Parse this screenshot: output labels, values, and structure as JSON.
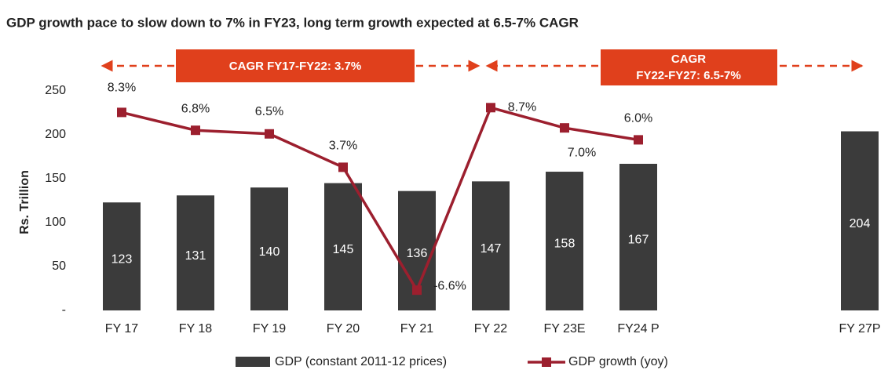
{
  "chart_data": {
    "type": "bar",
    "title": "GDP growth pace to slow down to 7% in FY23, long term growth expected at 6.5-7% CAGR",
    "y_label": "Rs. Trillion",
    "categories": [
      "FY 17",
      "FY 18",
      "FY 19",
      "FY 20",
      "FY 21",
      "FY 22",
      "FY 23E",
      "FY24 P",
      null,
      null,
      "FY 27P"
    ],
    "ylim": [
      0,
      250
    ],
    "yticks": [
      {
        "value": 0,
        "label": "-"
      },
      50,
      100,
      150,
      200,
      250
    ],
    "y2lim": [
      -8.3,
      10.1
    ],
    "series": [
      {
        "name": "GDP (constant 2011-12 prices)",
        "type": "bar",
        "color": "#3b3b3b",
        "values": [
          123,
          131,
          140,
          145,
          136,
          147,
          158,
          167,
          null,
          null,
          204
        ]
      },
      {
        "name": "GDP growth (yoy)",
        "type": "line",
        "axis": "y2",
        "color": "#9c1f2e",
        "values": [
          8.3,
          6.8,
          6.5,
          3.7,
          -6.6,
          8.7,
          7.0,
          6.0,
          null,
          null,
          null
        ],
        "value_labels": [
          "8.3%",
          "6.8%",
          "6.5%",
          "3.7%",
          "-6.6%",
          "8.7%",
          "7.0%",
          "6.0%",
          null,
          null,
          null
        ]
      }
    ],
    "annotations": [
      "CAGR FY17-FY22: 3.7%",
      "CAGR",
      "FY22-FY27: 6.5-7%"
    ],
    "grid": false
  }
}
